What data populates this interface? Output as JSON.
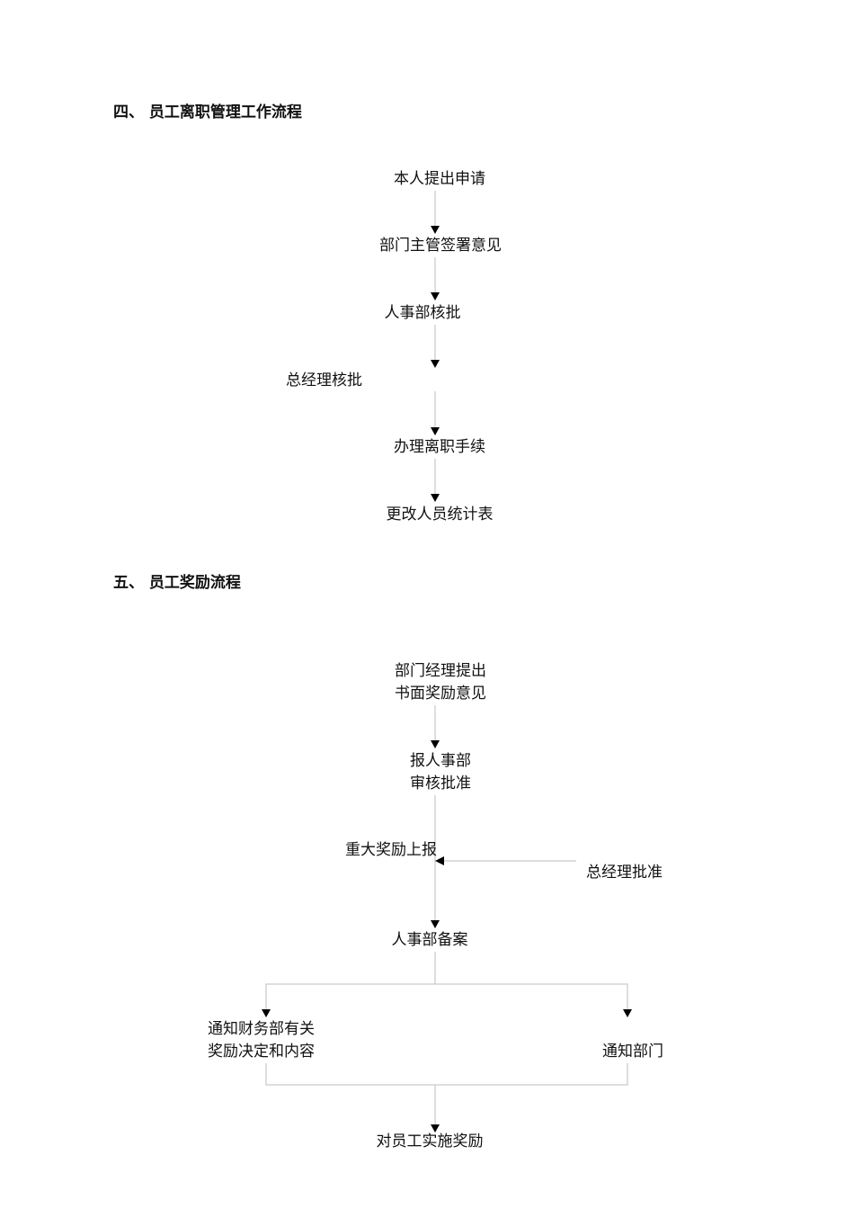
{
  "section4": {
    "title": "四、 员工离职管理工作流程",
    "steps": [
      "本人提出申请",
      "部门主管签署意见",
      "人事部核批",
      "总经理核批",
      "办理离职手续",
      "更改人员统计表"
    ]
  },
  "section5": {
    "title": "五、 员工奖励流程",
    "step1": [
      "部门经理提出",
      "书面奖励意见"
    ],
    "step2": [
      "报人事部",
      "审核批准"
    ],
    "major": "重大奖励上报",
    "gm": "总经理批准",
    "record": "人事部备案",
    "finance": [
      "通知财务部有关",
      "奖励决定和内容"
    ],
    "dept": "通知部门",
    "final": "对员工实施奖励"
  },
  "colors": {
    "line": "#bdbdbd",
    "arrow": "#000000"
  }
}
